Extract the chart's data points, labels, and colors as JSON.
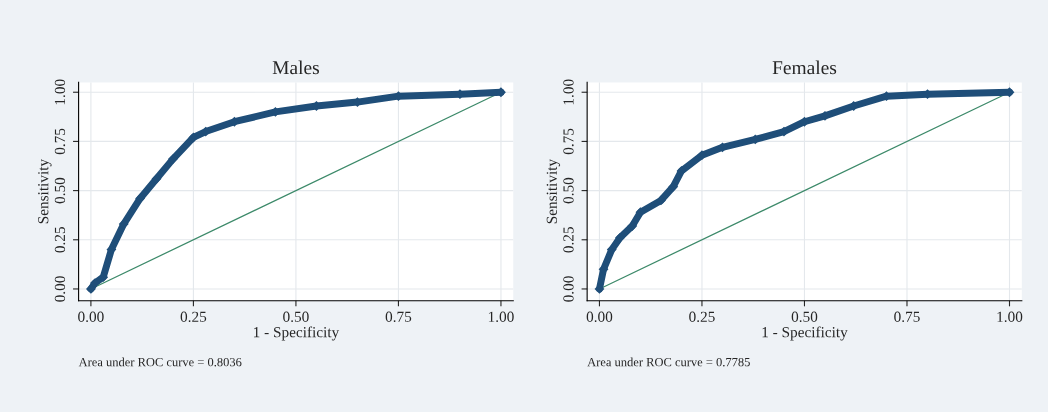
{
  "chart_data": [
    {
      "type": "line",
      "title": "Males",
      "xlabel": "1 - Specificity",
      "ylabel": "Sensitivity",
      "xlim": [
        -0.03,
        1.03
      ],
      "ylim": [
        -0.06,
        1.05
      ],
      "xticks": [
        {
          "value": 0,
          "label": "0.00"
        },
        {
          "value": 0.25,
          "label": "0.25"
        },
        {
          "value": 0.5,
          "label": "0.50"
        },
        {
          "value": 0.75,
          "label": "0.75"
        },
        {
          "value": 1,
          "label": "1.00"
        }
      ],
      "yticks": [
        {
          "value": 0,
          "label": "0.00"
        },
        {
          "value": 0.25,
          "label": "0.25"
        },
        {
          "value": 0.5,
          "label": "0.50"
        },
        {
          "value": 0.75,
          "label": "0.75"
        },
        {
          "value": 1,
          "label": "1.00"
        }
      ],
      "grid": true,
      "marker": "diamond",
      "series": [
        {
          "color": "#1f4e79",
          "x": [
            0,
            0.01,
            0.03,
            0.05,
            0.08,
            0.12,
            0.16,
            0.2,
            0.25,
            0.28,
            0.35,
            0.45,
            0.55,
            0.65,
            0.75,
            0.9,
            1
          ],
          "values": [
            0,
            0.03,
            0.06,
            0.2,
            0.33,
            0.46,
            0.56,
            0.66,
            0.77,
            0.8,
            0.85,
            0.9,
            0.93,
            0.95,
            0.98,
            0.99,
            1
          ]
        },
        {
          "color": "#3d8a6a",
          "marker": "none",
          "x": [
            0,
            1
          ],
          "values": [
            0,
            1
          ]
        }
      ],
      "annotations": [
        "Area under ROC curve = 0.8036"
      ]
    },
    {
      "type": "line",
      "title": "Females",
      "xlabel": "1 - Specificity",
      "ylabel": "Sensitivity",
      "xlim": [
        -0.03,
        1.03
      ],
      "ylim": [
        -0.06,
        1.05
      ],
      "xticks": [
        {
          "value": 0,
          "label": "0.00"
        },
        {
          "value": 0.25,
          "label": "0.25"
        },
        {
          "value": 0.5,
          "label": "0.50"
        },
        {
          "value": 0.75,
          "label": "0.75"
        },
        {
          "value": 1,
          "label": "1.00"
        }
      ],
      "yticks": [
        {
          "value": 0,
          "label": "0.00"
        },
        {
          "value": 0.25,
          "label": "0.25"
        },
        {
          "value": 0.5,
          "label": "0.50"
        },
        {
          "value": 0.75,
          "label": "0.75"
        },
        {
          "value": 1,
          "label": "1.00"
        }
      ],
      "grid": true,
      "marker": "diamond",
      "series": [
        {
          "color": "#1f4e79",
          "x": [
            0,
            0.01,
            0.03,
            0.05,
            0.08,
            0.1,
            0.15,
            0.18,
            0.2,
            0.25,
            0.3,
            0.38,
            0.45,
            0.5,
            0.55,
            0.62,
            0.7,
            0.8,
            1
          ],
          "values": [
            0,
            0.1,
            0.2,
            0.26,
            0.32,
            0.39,
            0.45,
            0.52,
            0.6,
            0.68,
            0.72,
            0.76,
            0.8,
            0.85,
            0.88,
            0.93,
            0.98,
            0.99,
            1
          ]
        },
        {
          "color": "#3d8a6a",
          "marker": "none",
          "x": [
            0,
            1
          ],
          "values": [
            0,
            1
          ]
        }
      ],
      "annotations": [
        "Area under ROC curve = 0.7785"
      ]
    }
  ]
}
